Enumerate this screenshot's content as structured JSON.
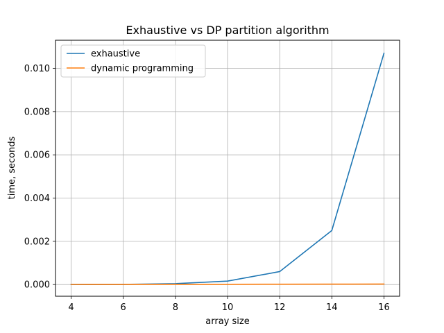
{
  "chart_data": {
    "type": "line",
    "title": "Exhaustive vs DP partition algorithm",
    "xlabel": "array size",
    "ylabel": "time, seconds",
    "x": [
      4,
      6,
      8,
      10,
      12,
      14,
      16
    ],
    "xlim": [
      3.4,
      16.6
    ],
    "ylim": [
      -0.00054,
      0.0113
    ],
    "xticks": [
      4,
      6,
      8,
      10,
      12,
      14,
      16
    ],
    "yticks": [
      0.0,
      0.002,
      0.004,
      0.006,
      0.008,
      0.01
    ],
    "xtick_labels": [
      "4",
      "6",
      "8",
      "10",
      "12",
      "14",
      "16"
    ],
    "ytick_labels": [
      "0.000",
      "0.002",
      "0.004",
      "0.006",
      "0.008",
      "0.010"
    ],
    "grid": true,
    "legend_position": "top-left",
    "series": [
      {
        "name": "exhaustive",
        "color": "#1f77b4",
        "values": [
          2e-06,
          8e-06,
          4e-05,
          0.00016,
          0.0006,
          0.0025,
          0.0107
        ]
      },
      {
        "name": "dynamic programming",
        "color": "#ff7f0e",
        "values": [
          5e-06,
          8e-06,
          1e-05,
          1.2e-05,
          1.5e-05,
          1.8e-05,
          2.2e-05
        ]
      }
    ]
  }
}
